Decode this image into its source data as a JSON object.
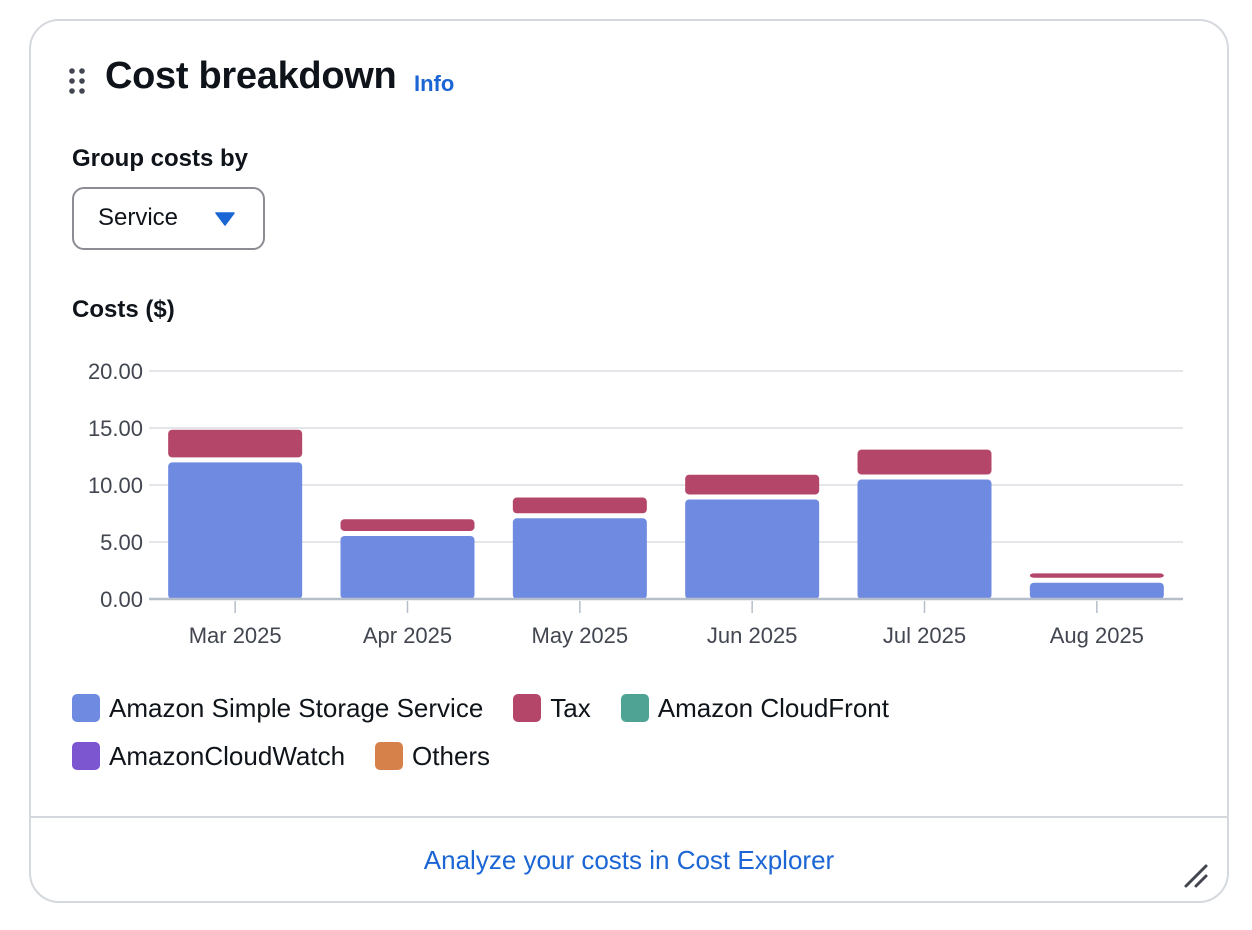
{
  "widget": {
    "title": "Cost breakdown",
    "info_label": "Info",
    "group_by_label": "Group costs by",
    "group_by_value": "Service",
    "costs_label": "Costs ($)",
    "footer_link": "Analyze your costs in Cost Explorer"
  },
  "legend": [
    {
      "label": "Amazon Simple Storage Service",
      "color": "#6f8be1"
    },
    {
      "label": "Tax",
      "color": "#b4466a"
    },
    {
      "label": "Amazon CloudFront",
      "color": "#4ea394"
    },
    {
      "label": "AmazonCloudWatch",
      "color": "#7c55d0"
    },
    {
      "label": "Others",
      "color": "#d6804a"
    }
  ],
  "chart_data": {
    "type": "bar",
    "stacked": true,
    "categories": [
      "Mar 2025",
      "Apr 2025",
      "May 2025",
      "Jun 2025",
      "Jul 2025",
      "Aug 2025"
    ],
    "series": [
      {
        "name": "Amazon Simple Storage Service",
        "color": "#6f8be1",
        "values": [
          12.2,
          5.75,
          7.3,
          8.95,
          10.7,
          1.65
        ]
      },
      {
        "name": "Tax",
        "color": "#b4466a",
        "values": [
          2.65,
          1.25,
          1.6,
          1.95,
          2.4,
          0.6
        ]
      },
      {
        "name": "Amazon CloudFront",
        "color": "#4ea394",
        "values": [
          0,
          0,
          0,
          0,
          0,
          0
        ]
      },
      {
        "name": "AmazonCloudWatch",
        "color": "#7c55d0",
        "values": [
          0,
          0,
          0,
          0,
          0,
          0
        ]
      },
      {
        "name": "Others",
        "color": "#d6804a",
        "values": [
          0,
          0,
          0,
          0,
          0,
          0
        ]
      }
    ],
    "ylabel": "Costs ($)",
    "yticks": [
      "0.00",
      "5.00",
      "10.00",
      "15.00",
      "20.00"
    ],
    "ylim": [
      0,
      20
    ],
    "grid": true,
    "legend_position": "bottom"
  }
}
